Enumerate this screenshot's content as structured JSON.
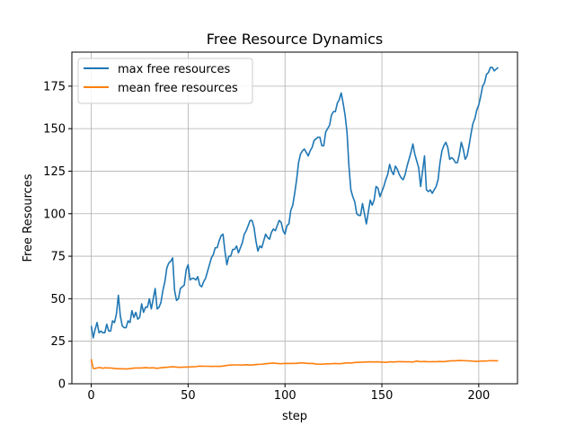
{
  "chart_data": {
    "type": "line",
    "title": "Free Resource Dynamics",
    "xlabel": "step",
    "ylabel": "Free Resources",
    "xlim": [
      -10,
      220
    ],
    "ylim": [
      0,
      195
    ],
    "xticks": [
      0,
      50,
      100,
      150,
      200
    ],
    "yticks": [
      0,
      25,
      50,
      75,
      100,
      125,
      150,
      175
    ],
    "grid": true,
    "legend_position": "top-left",
    "series": [
      {
        "name": "max free resources",
        "color": "#1f77b4",
        "points": [
          [
            0,
            34
          ],
          [
            1,
            27
          ],
          [
            2,
            32
          ],
          [
            3,
            36
          ],
          [
            4,
            30
          ],
          [
            5,
            31
          ],
          [
            6,
            30
          ],
          [
            7,
            30
          ],
          [
            8,
            35
          ],
          [
            9,
            31
          ],
          [
            10,
            31
          ],
          [
            11,
            37
          ],
          [
            12,
            36
          ],
          [
            13,
            41
          ],
          [
            14,
            52
          ],
          [
            15,
            40
          ],
          [
            16,
            34
          ],
          [
            17,
            33
          ],
          [
            18,
            33
          ],
          [
            19,
            37
          ],
          [
            20,
            36
          ],
          [
            21,
            43
          ],
          [
            22,
            39
          ],
          [
            23,
            42
          ],
          [
            24,
            38
          ],
          [
            25,
            39
          ],
          [
            26,
            47
          ],
          [
            27,
            42
          ],
          [
            28,
            45
          ],
          [
            29,
            45
          ],
          [
            30,
            50
          ],
          [
            31,
            44
          ],
          [
            32,
            50
          ],
          [
            33,
            56
          ],
          [
            34,
            44
          ],
          [
            35,
            45
          ],
          [
            36,
            48
          ],
          [
            37,
            55
          ],
          [
            38,
            60
          ],
          [
            39,
            68
          ],
          [
            40,
            71
          ],
          [
            41,
            72
          ],
          [
            42,
            74
          ],
          [
            43,
            55
          ],
          [
            44,
            49
          ],
          [
            45,
            50
          ],
          [
            46,
            56
          ],
          [
            47,
            57
          ],
          [
            48,
            58
          ],
          [
            49,
            67
          ],
          [
            50,
            70
          ],
          [
            51,
            61
          ],
          [
            52,
            62
          ],
          [
            53,
            62
          ],
          [
            54,
            61
          ],
          [
            55,
            63
          ],
          [
            56,
            58
          ],
          [
            57,
            57
          ],
          [
            58,
            60
          ],
          [
            59,
            62
          ],
          [
            60,
            66
          ],
          [
            61,
            70
          ],
          [
            62,
            74
          ],
          [
            63,
            76
          ],
          [
            64,
            80
          ],
          [
            65,
            80
          ],
          [
            66,
            84
          ],
          [
            67,
            87
          ],
          [
            68,
            88
          ],
          [
            69,
            78
          ],
          [
            70,
            70
          ],
          [
            71,
            75
          ],
          [
            72,
            75
          ],
          [
            73,
            79
          ],
          [
            74,
            79
          ],
          [
            75,
            81
          ],
          [
            76,
            77
          ],
          [
            77,
            80
          ],
          [
            78,
            83
          ],
          [
            79,
            88
          ],
          [
            80,
            90
          ],
          [
            81,
            93
          ],
          [
            82,
            96
          ],
          [
            83,
            96
          ],
          [
            84,
            92
          ],
          [
            85,
            84
          ],
          [
            86,
            78
          ],
          [
            87,
            81
          ],
          [
            88,
            80
          ],
          [
            89,
            84
          ],
          [
            90,
            88
          ],
          [
            91,
            86
          ],
          [
            92,
            85
          ],
          [
            93,
            89
          ],
          [
            94,
            91
          ],
          [
            95,
            90
          ],
          [
            96,
            93
          ],
          [
            97,
            96
          ],
          [
            98,
            95
          ],
          [
            99,
            90
          ],
          [
            100,
            88
          ],
          [
            101,
            93
          ],
          [
            102,
            94
          ],
          [
            103,
            102
          ],
          [
            104,
            105
          ],
          [
            105,
            112
          ],
          [
            106,
            120
          ],
          [
            107,
            130
          ],
          [
            108,
            135
          ],
          [
            109,
            137
          ],
          [
            110,
            138
          ],
          [
            111,
            136
          ],
          [
            112,
            134
          ],
          [
            113,
            137
          ],
          [
            114,
            139
          ],
          [
            115,
            143
          ],
          [
            116,
            144
          ],
          [
            117,
            145
          ],
          [
            118,
            145
          ],
          [
            119,
            140
          ],
          [
            120,
            140
          ],
          [
            121,
            148
          ],
          [
            122,
            150
          ],
          [
            123,
            152
          ],
          [
            124,
            158
          ],
          [
            125,
            160
          ],
          [
            126,
            160
          ],
          [
            127,
            165
          ],
          [
            128,
            167
          ],
          [
            129,
            171
          ],
          [
            130,
            165
          ],
          [
            131,
            158
          ],
          [
            132,
            148
          ],
          [
            133,
            128
          ],
          [
            134,
            114
          ],
          [
            135,
            110
          ],
          [
            136,
            107
          ],
          [
            137,
            100
          ],
          [
            138,
            99
          ],
          [
            139,
            99
          ],
          [
            140,
            106
          ],
          [
            141,
            100
          ],
          [
            142,
            94
          ],
          [
            143,
            101
          ],
          [
            144,
            108
          ],
          [
            145,
            105
          ],
          [
            146,
            108
          ],
          [
            147,
            116
          ],
          [
            148,
            115
          ],
          [
            149,
            110
          ],
          [
            150,
            113
          ],
          [
            151,
            116
          ],
          [
            152,
            120
          ],
          [
            153,
            123
          ],
          [
            154,
            129
          ],
          [
            155,
            125
          ],
          [
            156,
            123
          ],
          [
            157,
            128
          ],
          [
            158,
            126
          ],
          [
            159,
            123
          ],
          [
            160,
            121
          ],
          [
            161,
            120
          ],
          [
            162,
            123
          ],
          [
            163,
            128
          ],
          [
            164,
            132
          ],
          [
            165,
            136
          ],
          [
            166,
            141
          ],
          [
            167,
            135
          ],
          [
            168,
            131
          ],
          [
            169,
            127
          ],
          [
            170,
            116
          ],
          [
            171,
            125
          ],
          [
            172,
            134
          ],
          [
            173,
            114
          ],
          [
            174,
            113
          ],
          [
            175,
            114
          ],
          [
            176,
            112
          ],
          [
            177,
            114
          ],
          [
            178,
            116
          ],
          [
            179,
            120
          ],
          [
            180,
            130
          ],
          [
            181,
            137
          ],
          [
            182,
            140
          ],
          [
            183,
            142
          ],
          [
            184,
            139
          ],
          [
            185,
            132
          ],
          [
            186,
            133
          ],
          [
            187,
            132
          ],
          [
            188,
            130
          ],
          [
            189,
            130
          ],
          [
            190,
            135
          ],
          [
            191,
            142
          ],
          [
            192,
            138
          ],
          [
            193,
            132
          ],
          [
            194,
            134
          ],
          [
            195,
            140
          ],
          [
            196,
            147
          ],
          [
            197,
            153
          ],
          [
            198,
            156
          ],
          [
            199,
            161
          ],
          [
            200,
            164
          ],
          [
            201,
            169
          ],
          [
            202,
            175
          ],
          [
            203,
            177
          ],
          [
            204,
            182
          ],
          [
            205,
            183
          ],
          [
            206,
            186
          ],
          [
            207,
            186
          ],
          [
            208,
            184
          ],
          [
            209,
            185
          ],
          [
            210,
            186
          ]
        ]
      },
      {
        "name": "mean free resources",
        "color": "#ff7f0e",
        "points": [
          [
            0,
            14.5
          ],
          [
            1,
            9.0
          ],
          [
            2,
            9.0
          ],
          [
            3,
            9.3
          ],
          [
            4,
            9.5
          ],
          [
            5,
            9.4
          ],
          [
            6,
            9.1
          ],
          [
            7,
            9.4
          ],
          [
            8,
            9.3
          ],
          [
            10,
            9.3
          ],
          [
            12,
            9.0
          ],
          [
            14,
            8.8
          ],
          [
            16,
            8.8
          ],
          [
            18,
            8.7
          ],
          [
            20,
            8.9
          ],
          [
            22,
            9.2
          ],
          [
            24,
            9.3
          ],
          [
            26,
            9.3
          ],
          [
            28,
            9.5
          ],
          [
            30,
            9.3
          ],
          [
            32,
            9.4
          ],
          [
            34,
            9.1
          ],
          [
            36,
            9.4
          ],
          [
            38,
            9.6
          ],
          [
            40,
            9.8
          ],
          [
            42,
            10.0
          ],
          [
            44,
            9.8
          ],
          [
            46,
            9.7
          ],
          [
            48,
            9.8
          ],
          [
            50,
            9.8
          ],
          [
            52,
            10.0
          ],
          [
            54,
            10.1
          ],
          [
            56,
            10.4
          ],
          [
            58,
            10.3
          ],
          [
            60,
            10.3
          ],
          [
            62,
            10.2
          ],
          [
            64,
            10.3
          ],
          [
            66,
            10.2
          ],
          [
            68,
            10.4
          ],
          [
            70,
            10.8
          ],
          [
            72,
            11.0
          ],
          [
            74,
            11.1
          ],
          [
            76,
            11.1
          ],
          [
            78,
            11.0
          ],
          [
            80,
            11.2
          ],
          [
            82,
            11.0
          ],
          [
            84,
            11.2
          ],
          [
            86,
            11.4
          ],
          [
            88,
            11.5
          ],
          [
            90,
            11.8
          ],
          [
            92,
            12.0
          ],
          [
            94,
            12.2
          ],
          [
            96,
            11.9
          ],
          [
            98,
            11.8
          ],
          [
            100,
            12.0
          ],
          [
            102,
            11.9
          ],
          [
            104,
            12.0
          ],
          [
            106,
            12.0
          ],
          [
            108,
            12.3
          ],
          [
            110,
            12.2
          ],
          [
            112,
            11.9
          ],
          [
            114,
            12.0
          ],
          [
            116,
            11.6
          ],
          [
            118,
            11.5
          ],
          [
            120,
            11.6
          ],
          [
            122,
            11.7
          ],
          [
            124,
            11.8
          ],
          [
            126,
            11.9
          ],
          [
            128,
            11.8
          ],
          [
            130,
            12.0
          ],
          [
            132,
            12.3
          ],
          [
            134,
            12.2
          ],
          [
            136,
            12.5
          ],
          [
            138,
            12.6
          ],
          [
            140,
            12.7
          ],
          [
            142,
            12.8
          ],
          [
            144,
            12.9
          ],
          [
            146,
            12.8
          ],
          [
            148,
            12.9
          ],
          [
            150,
            12.7
          ],
          [
            152,
            12.6
          ],
          [
            154,
            12.9
          ],
          [
            156,
            12.8
          ],
          [
            158,
            13.0
          ],
          [
            160,
            13.0
          ],
          [
            162,
            12.9
          ],
          [
            164,
            12.9
          ],
          [
            166,
            12.8
          ],
          [
            168,
            13.3
          ],
          [
            170,
            13.0
          ],
          [
            172,
            13.1
          ],
          [
            174,
            12.9
          ],
          [
            176,
            13.0
          ],
          [
            178,
            13.0
          ],
          [
            180,
            13.1
          ],
          [
            182,
            13.0
          ],
          [
            184,
            13.3
          ],
          [
            186,
            13.5
          ],
          [
            188,
            13.5
          ],
          [
            190,
            13.7
          ],
          [
            192,
            13.6
          ],
          [
            194,
            13.5
          ],
          [
            196,
            13.4
          ],
          [
            198,
            13.2
          ],
          [
            200,
            13.2
          ],
          [
            202,
            13.4
          ],
          [
            204,
            13.4
          ],
          [
            206,
            13.6
          ],
          [
            208,
            13.5
          ],
          [
            210,
            13.5
          ]
        ]
      }
    ]
  }
}
